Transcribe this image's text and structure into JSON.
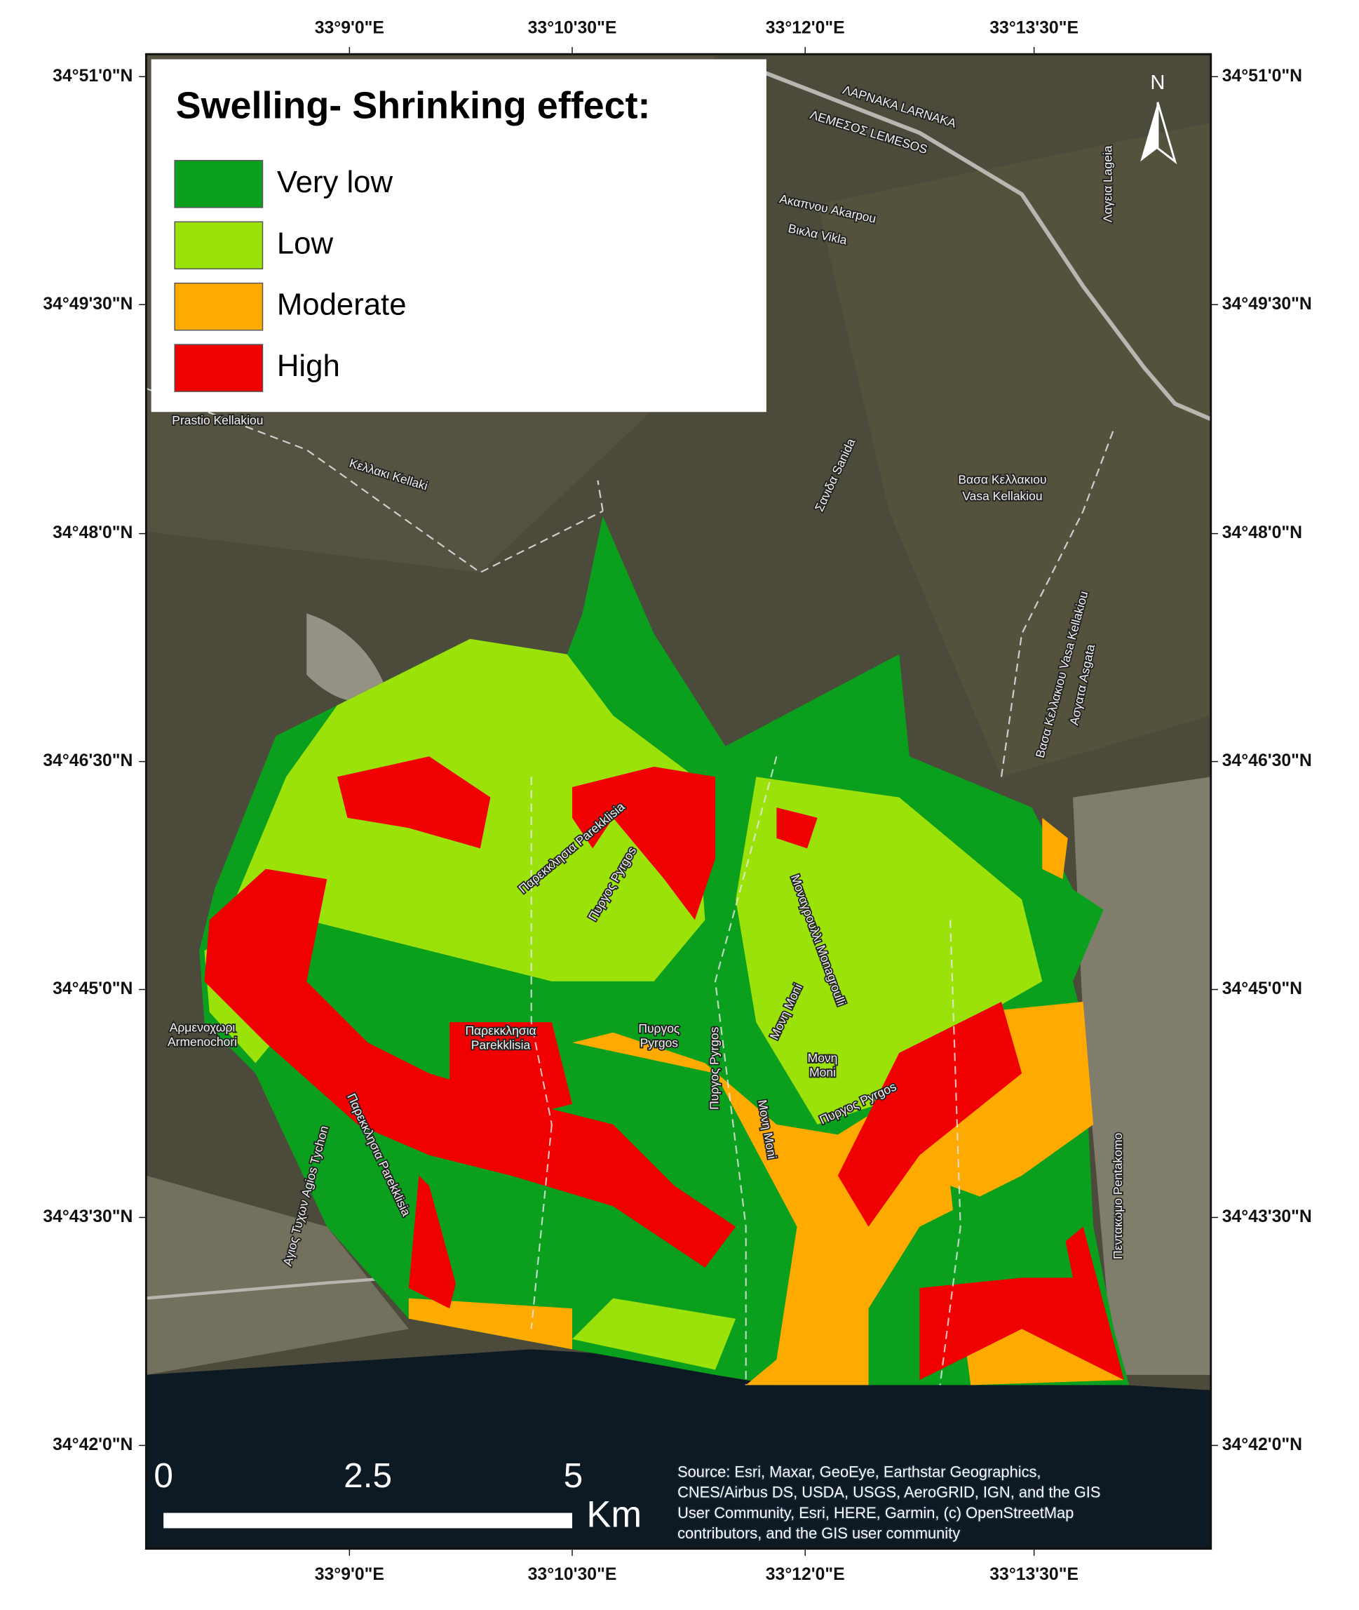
{
  "legend": {
    "title": "Swelling- Shrinking effect:",
    "items": [
      {
        "label": "Very low",
        "color": "#0aa01e"
      },
      {
        "label": "Low",
        "color": "#9be10a"
      },
      {
        "label": "Moderate",
        "color": "#ffaa00"
      },
      {
        "label": "High",
        "color": "#f00000"
      }
    ]
  },
  "axes": {
    "top": [
      "33°9'0\"E",
      "33°10'30\"E",
      "33°12'0\"E",
      "33°13'30\"E"
    ],
    "bottom": [
      "33°9'0\"E",
      "33°10'30\"E",
      "33°12'0\"E",
      "33°13'30\"E"
    ],
    "left": [
      "34°51'0\"N",
      "34°49'30\"N",
      "34°48'0\"N",
      "34°46'30\"N",
      "34°45'0\"N",
      "34°43'30\"N",
      "34°42'0\"N"
    ],
    "right": [
      "34°51'0\"N",
      "34°49'30\"N",
      "34°48'0\"N",
      "34°46'30\"N",
      "34°45'0\"N",
      "34°43'30\"N",
      "34°42'0\"N"
    ]
  },
  "north": "N",
  "scale_bar": {
    "labels": [
      "0",
      "2.5",
      "5"
    ],
    "unit": "Km"
  },
  "source": [
    "Source: Esri, Maxar, GeoEye, Earthstar Geographics,",
    "CNES/Airbus DS, USDA, USGS, AeroGRID, IGN, and the GIS",
    "User Community, Esri, HERE, Garmin, (c) OpenStreetMap",
    "contributors, and the GIS user community"
  ],
  "places": [
    "ΛΑΡΝΑΚΑ LARNAKA",
    "ΛΕΜΕΣΟΣ LEMESOS",
    "Ακαπνου Akarpou",
    "Βικλα Vikla",
    "Λαγεια Lageia",
    "Prastio Kellakiou",
    "Κελλακι Kellaki",
    "Σανιδα Sanida",
    "Βασα Κελλακιου",
    "Vasa Kellakiou",
    "Βασα Κελλακιου Vasa Kellakiou",
    "Ασγατα Asgata",
    "Παρεκκλησια Parekklisia",
    "Πυργος Pyrgos",
    "Μοναγρουλλι Monagroulli",
    "Μονη Moni",
    "Παρεκκλησια",
    "Parekklisia",
    "Πυργος",
    "Pyrgos",
    "Αρμενοχωρι",
    "Armenochori",
    "Παρεκκλησια Parekklisia",
    "Πυργος Pyrgos",
    "Μονη Moni",
    "Μονη",
    "Moni",
    "Πυργος Pyrgos",
    "Αγιος Τυχων Agios Tychon",
    "Πενταкωμο Pentakomo"
  ]
}
